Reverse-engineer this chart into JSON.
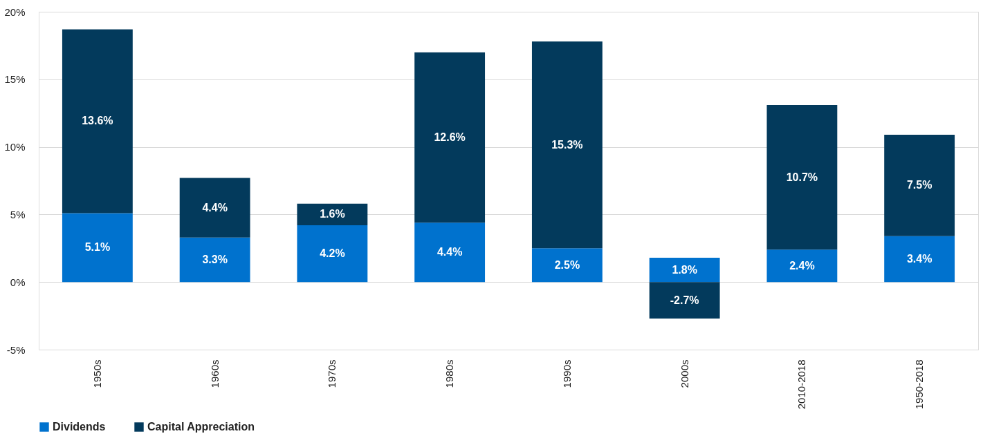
{
  "chart_data": {
    "type": "bar",
    "stacked": true,
    "categories": [
      "1950s",
      "1960s",
      "1970s",
      "1980s",
      "1990s",
      "2000s",
      "2010-2018",
      "1950-2018"
    ],
    "series": [
      {
        "name": "Dividends",
        "color": "#0072ce",
        "values": [
          5.1,
          3.3,
          4.2,
          4.4,
          2.5,
          1.8,
          2.4,
          3.4
        ],
        "value_labels": [
          "5.1%",
          "3.3%",
          "4.2%",
          "4.4%",
          "2.5%",
          "1.8%",
          "2.4%",
          "3.4%"
        ]
      },
      {
        "name": "Capital Appreciation",
        "color": "#033a5c",
        "values": [
          13.6,
          4.4,
          1.6,
          12.6,
          15.3,
          -2.7,
          10.7,
          7.5
        ],
        "value_labels": [
          "13.6%",
          "4.4%",
          "1.6%",
          "12.6%",
          "15.3%",
          "-2.7%",
          "10.7%",
          "7.5%"
        ]
      }
    ],
    "ylim": [
      -5,
      20
    ],
    "yticks": [
      {
        "value": -5,
        "label": "-5%"
      },
      {
        "value": 0,
        "label": "0%"
      },
      {
        "value": 5,
        "label": "5%"
      },
      {
        "value": 10,
        "label": "10%"
      },
      {
        "value": 15,
        "label": "15%"
      },
      {
        "value": 20,
        "label": "20%"
      }
    ],
    "grid": "y",
    "legend": "bottom"
  }
}
